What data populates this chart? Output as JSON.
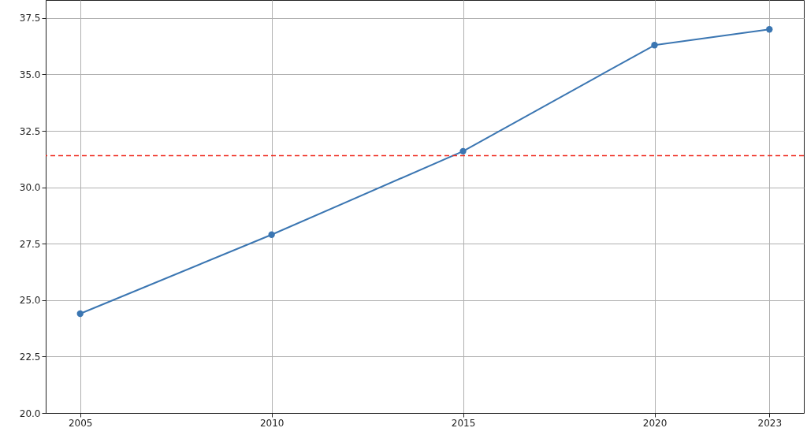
{
  "chart_data": {
    "type": "line",
    "x": [
      2005,
      2010,
      2015,
      2020,
      2023
    ],
    "series": [
      {
        "color": "#3b76b2",
        "values": [
          24.4,
          27.9,
          31.6,
          36.3,
          37.0
        ]
      }
    ],
    "xlim": [
      2004.1,
      2023.9
    ],
    "xticks": [
      2005,
      2010,
      2015,
      2020,
      2023
    ],
    "ylim": [
      20,
      38.3
    ],
    "yticks": [
      {
        "value": 20,
        "label": "20.0"
      },
      22.5,
      {
        "value": 25,
        "label": "25.0"
      },
      27.5,
      {
        "value": 30,
        "label": "30.0"
      },
      32.5,
      {
        "value": 35,
        "label": "35.0"
      },
      37.5
    ],
    "ref_lines": [
      {
        "axis": "y",
        "value": 31.4,
        "color": "#ee2a1e",
        "line_style": "dashed"
      }
    ],
    "grid": true,
    "marker": "circle",
    "line_style": "solid"
  }
}
